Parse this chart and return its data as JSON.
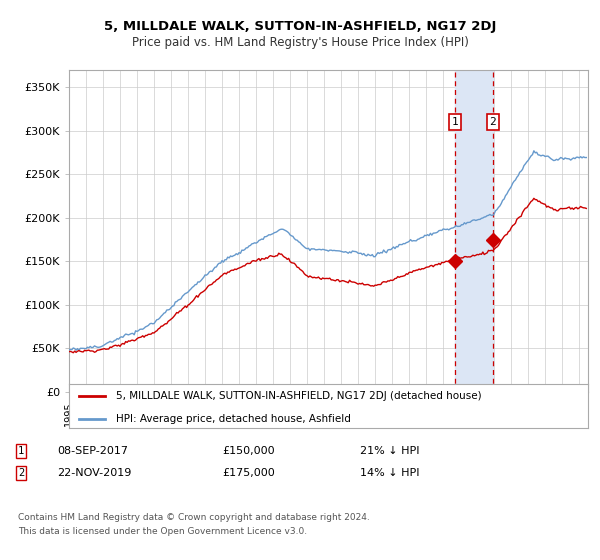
{
  "title": "5, MILLDALE WALK, SUTTON-IN-ASHFIELD, NG17 2DJ",
  "subtitle": "Price paid vs. HM Land Registry's House Price Index (HPI)",
  "ylabel_ticks": [
    "£0",
    "£50K",
    "£100K",
    "£150K",
    "£200K",
    "£250K",
    "£300K",
    "£350K"
  ],
  "ytick_values": [
    0,
    50000,
    100000,
    150000,
    200000,
    250000,
    300000,
    350000
  ],
  "ylim": [
    0,
    370000
  ],
  "xlim_start": 1995.0,
  "xlim_end": 2025.5,
  "transaction1": {
    "date": 2017.69,
    "price": 150000,
    "label": "1",
    "date_str": "08-SEP-2017",
    "pct": "21%",
    "direction": "↓"
  },
  "transaction2": {
    "date": 2019.9,
    "price": 175000,
    "label": "2",
    "date_str": "22-NOV-2019",
    "pct": "14%",
    "direction": "↓"
  },
  "legend_property": "5, MILLDALE WALK, SUTTON-IN-ASHFIELD, NG17 2DJ (detached house)",
  "legend_hpi": "HPI: Average price, detached house, Ashfield",
  "footer1": "Contains HM Land Registry data © Crown copyright and database right 2024.",
  "footer2": "This data is licensed under the Open Government Licence v3.0.",
  "property_color": "#cc0000",
  "hpi_color": "#6699cc",
  "highlight_fill": "#dce6f5",
  "highlight_edge": "#cc0000",
  "grid_color": "#cccccc",
  "bg_color": "#ffffff"
}
